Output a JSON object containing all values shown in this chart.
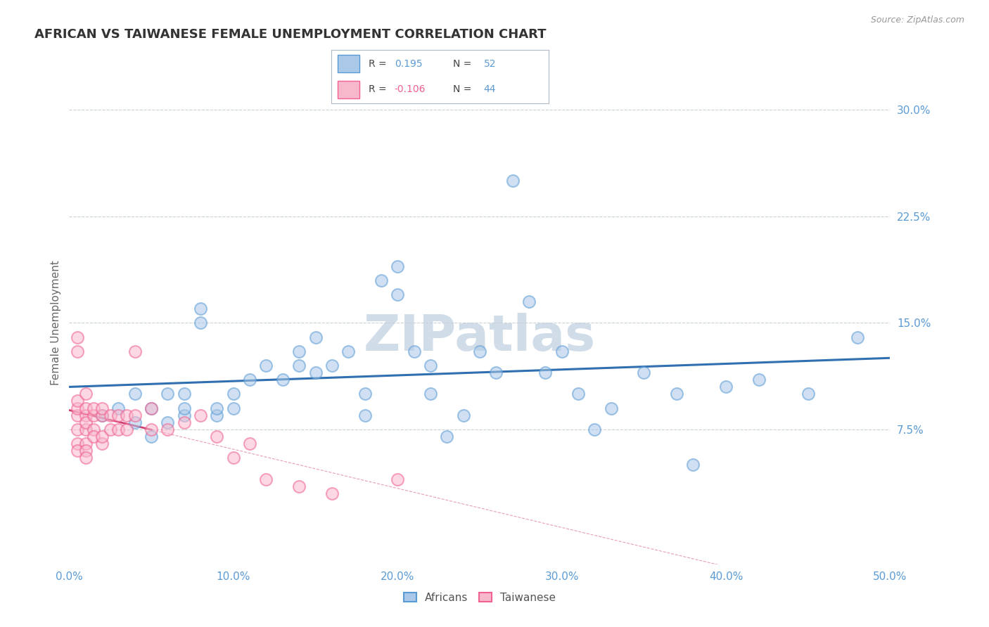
{
  "title": "AFRICAN VS TAIWANESE FEMALE UNEMPLOYMENT CORRELATION CHART",
  "source": "Source: ZipAtlas.com",
  "ylabel": "Female Unemployment",
  "xlim": [
    0.0,
    0.5
  ],
  "ylim": [
    -0.02,
    0.32
  ],
  "ytick_vals": [
    0.075,
    0.15,
    0.225,
    0.3
  ],
  "ytick_labels": [
    "7.5%",
    "15.0%",
    "22.5%",
    "30.0%"
  ],
  "xtick_vals": [
    0.0,
    0.1,
    0.2,
    0.3,
    0.4,
    0.5
  ],
  "xtick_labels": [
    "0.0%",
    "10.0%",
    "20.0%",
    "30.0%",
    "40.0%",
    "50.0%"
  ],
  "africans_x": [
    0.02,
    0.03,
    0.04,
    0.04,
    0.05,
    0.05,
    0.06,
    0.06,
    0.07,
    0.07,
    0.07,
    0.08,
    0.08,
    0.09,
    0.09,
    0.1,
    0.1,
    0.11,
    0.12,
    0.13,
    0.14,
    0.14,
    0.15,
    0.15,
    0.16,
    0.17,
    0.18,
    0.18,
    0.19,
    0.2,
    0.2,
    0.21,
    0.22,
    0.22,
    0.23,
    0.24,
    0.25,
    0.26,
    0.27,
    0.28,
    0.29,
    0.3,
    0.31,
    0.32,
    0.33,
    0.35,
    0.37,
    0.38,
    0.4,
    0.42,
    0.45,
    0.48
  ],
  "africans_y": [
    0.085,
    0.09,
    0.08,
    0.1,
    0.07,
    0.09,
    0.08,
    0.1,
    0.085,
    0.09,
    0.1,
    0.15,
    0.16,
    0.085,
    0.09,
    0.1,
    0.09,
    0.11,
    0.12,
    0.11,
    0.12,
    0.13,
    0.14,
    0.115,
    0.12,
    0.13,
    0.085,
    0.1,
    0.18,
    0.17,
    0.19,
    0.13,
    0.1,
    0.12,
    0.07,
    0.085,
    0.13,
    0.115,
    0.25,
    0.165,
    0.115,
    0.13,
    0.1,
    0.075,
    0.09,
    0.115,
    0.1,
    0.05,
    0.105,
    0.11,
    0.1,
    0.14
  ],
  "taiwanese_x": [
    0.005,
    0.005,
    0.005,
    0.005,
    0.005,
    0.005,
    0.005,
    0.005,
    0.01,
    0.01,
    0.01,
    0.01,
    0.01,
    0.01,
    0.01,
    0.01,
    0.015,
    0.015,
    0.015,
    0.015,
    0.02,
    0.02,
    0.02,
    0.02,
    0.025,
    0.025,
    0.03,
    0.03,
    0.035,
    0.035,
    0.04,
    0.04,
    0.05,
    0.05,
    0.06,
    0.07,
    0.08,
    0.09,
    0.1,
    0.11,
    0.12,
    0.14,
    0.16,
    0.2
  ],
  "taiwanese_y": [
    0.13,
    0.14,
    0.085,
    0.09,
    0.095,
    0.075,
    0.065,
    0.06,
    0.1,
    0.085,
    0.09,
    0.075,
    0.08,
    0.065,
    0.06,
    0.055,
    0.085,
    0.09,
    0.075,
    0.07,
    0.085,
    0.09,
    0.065,
    0.07,
    0.085,
    0.075,
    0.085,
    0.075,
    0.085,
    0.075,
    0.085,
    0.13,
    0.075,
    0.09,
    0.075,
    0.08,
    0.085,
    0.07,
    0.055,
    0.065,
    0.04,
    0.035,
    0.03,
    0.04
  ],
  "african_color": "#5b9bd5",
  "african_color_fill": "#aac8e8",
  "taiwanese_color": "#f06090",
  "taiwanese_color_fill": "#f8b8cc",
  "line_color_african": "#3070b0",
  "line_color_taiwanese": "#d04070",
  "background_color": "#ffffff",
  "grid_color": "#c8d0d8",
  "title_color": "#333333",
  "axis_label_color": "#5b9bd5",
  "watermark_text": "ZIPatlas",
  "watermark_color": "#d0dce8",
  "legend_R1": "0.195",
  "legend_N1": "52",
  "legend_R2": "-0.106",
  "legend_N2": "44"
}
